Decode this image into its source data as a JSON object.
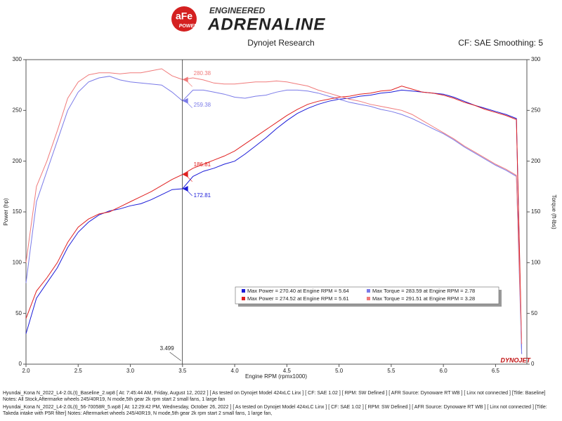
{
  "branding": {
    "top": "ENGINEERED",
    "main": "ADRENALINE",
    "logo": "aFe",
    "logo_sub": "POWER",
    "bottom_logo": "DYNOJET"
  },
  "chart_data": {
    "type": "line",
    "title": "Dynojet Research",
    "subtitle": "CF: SAE Smoothing: 5",
    "x_label": "Engine RPM (rpmx1000)",
    "y_label": "Power (hp)",
    "y2_label": "Torque (ft-lbs)",
    "xlim": [
      2,
      6.8
    ],
    "ylim": [
      0,
      300
    ],
    "y2lim": [
      0,
      300
    ],
    "xticks": [
      {
        "value": 2,
        "label": "2.0"
      },
      {
        "value": 2.5,
        "label": "2.5"
      },
      {
        "value": 3,
        "label": "3.0"
      },
      {
        "value": 3.5,
        "label": "3.5"
      },
      {
        "value": 4,
        "label": "4.0"
      },
      {
        "value": 4.5,
        "label": "4.5"
      },
      {
        "value": 5,
        "label": "5.0"
      },
      {
        "value": 5.5,
        "label": "5.5"
      },
      {
        "value": 6,
        "label": "6.0"
      },
      {
        "value": 6.5,
        "label": "6.5"
      }
    ],
    "yticks": [
      0,
      50,
      100,
      150,
      200,
      250,
      300
    ],
    "y2ticks": [
      0,
      50,
      100,
      150,
      200,
      250,
      300
    ],
    "grid": false,
    "x": [
      2.0,
      2.1,
      2.2,
      2.3,
      2.4,
      2.5,
      2.6,
      2.7,
      2.8,
      2.9,
      3.0,
      3.1,
      3.2,
      3.3,
      3.4,
      3.5,
      3.6,
      3.7,
      3.8,
      3.9,
      4.0,
      4.1,
      4.2,
      4.3,
      4.4,
      4.5,
      4.6,
      4.7,
      4.8,
      4.9,
      5.0,
      5.1,
      5.2,
      5.3,
      5.4,
      5.5,
      5.6,
      5.7,
      5.8,
      5.9,
      6.0,
      6.1,
      6.2,
      6.3,
      6.4,
      6.5,
      6.6,
      6.7,
      6.75
    ],
    "series": [
      {
        "name": "Max Power = 270.40 at Engine RPM = 5.64",
        "color": "#1a1ad8",
        "axis": "y",
        "values": [
          30,
          65,
          80,
          95,
          115,
          130,
          140,
          147,
          151,
          153,
          156,
          158,
          162,
          167,
          172,
          172.81,
          185,
          190,
          193,
          197,
          200,
          207,
          215,
          223,
          232,
          240,
          247,
          252,
          256,
          259,
          261,
          262,
          264,
          265,
          267,
          268,
          270,
          269,
          268,
          267,
          266,
          263,
          259,
          255,
          252,
          249,
          246,
          242,
          10
        ]
      },
      {
        "name": "Max Torque = 283.59 at Engine RPM = 2.78",
        "color": "#7a7ae8",
        "axis": "y2",
        "values": [
          80,
          160,
          190,
          220,
          250,
          268,
          278,
          282,
          283.59,
          280,
          278,
          277,
          276,
          275,
          268,
          259.38,
          270,
          270,
          268,
          266,
          263,
          262,
          264,
          265,
          268,
          270,
          270,
          269,
          267,
          264,
          261,
          258,
          256,
          254,
          251,
          249,
          246,
          242,
          237,
          232,
          227,
          221,
          214,
          208,
          202,
          196,
          191,
          185,
          10
        ]
      },
      {
        "name": "Max Power = 274.52 at Engine RPM = 5.61",
        "color": "#e02020",
        "axis": "y",
        "values": [
          45,
          72,
          85,
          100,
          120,
          135,
          143,
          148,
          150,
          155,
          160,
          165,
          170,
          176,
          182,
          186.81,
          193,
          197,
          201,
          205,
          210,
          217,
          224,
          231,
          238,
          245,
          251,
          256,
          259,
          261,
          263,
          264,
          266,
          267,
          269,
          270,
          274,
          271,
          268,
          267,
          265,
          262,
          258,
          255,
          251,
          248,
          245,
          241,
          20
        ]
      },
      {
        "name": "Max Torque = 291.51 at Engine RPM = 3.28",
        "color": "#f07a7a",
        "axis": "y2",
        "values": [
          100,
          175,
          200,
          230,
          262,
          278,
          285,
          287,
          287,
          286,
          287,
          287,
          289,
          291,
          284,
          280.38,
          282,
          280,
          277,
          276,
          276,
          277,
          278,
          278,
          279,
          278,
          276,
          274,
          270,
          267,
          264,
          261,
          259,
          256,
          254,
          252,
          250,
          246,
          240,
          234,
          228,
          222,
          215,
          209,
          203,
          197,
          192,
          186,
          20
        ]
      }
    ],
    "cursor_x": 3.499,
    "cursor_values": [
      {
        "value": 280.38,
        "color": "#f07a7a",
        "axis": "y2"
      },
      {
        "value": 259.38,
        "color": "#7a7ae8",
        "axis": "y2"
      },
      {
        "value": 186.81,
        "color": "#e02020",
        "axis": "y"
      },
      {
        "value": 172.81,
        "color": "#1a1ad8",
        "axis": "y"
      }
    ]
  },
  "footer_notes": [
    "Hyundai_Kona N_2022_L4-2.0L(t)_Baseline_2.wp8 [ At: 7:45:44 AM, Friday, August 12, 2022 ] [ As tested on Dynojet Model 424xLC Linx ] [ CF: SAE 1.02 ] [ RPM: SW Defined ] [ AFR Source: Dynoware RT WB ] [ Linx not connected ] [Title: Baseline]  Notes: All Stock,Aftermarke wheels 245/40R19, N mode,5th gear 2k rpm start 2 small fans, 1 large fan",
    "Hyundai_Kona N_2022_L4-2.0L(t)_56-70058R_5.wp8 [ At: 12:29:42 PM, Wednesday, October 26, 2022 ] [ As tested on Dynojet Model 424xLC Linx ] [ CF: SAE 1.02 ] [ RPM: SW Defined ] [ AFR Source: Dynoware RT WB ] [ Linx not connected ] [Title: Takeda intake with P5R filter]  Notes: Aftermarket wheels 245/40R19, N mode,5th gear 2k rpm start 2 small fans, 1 large fan,"
  ]
}
